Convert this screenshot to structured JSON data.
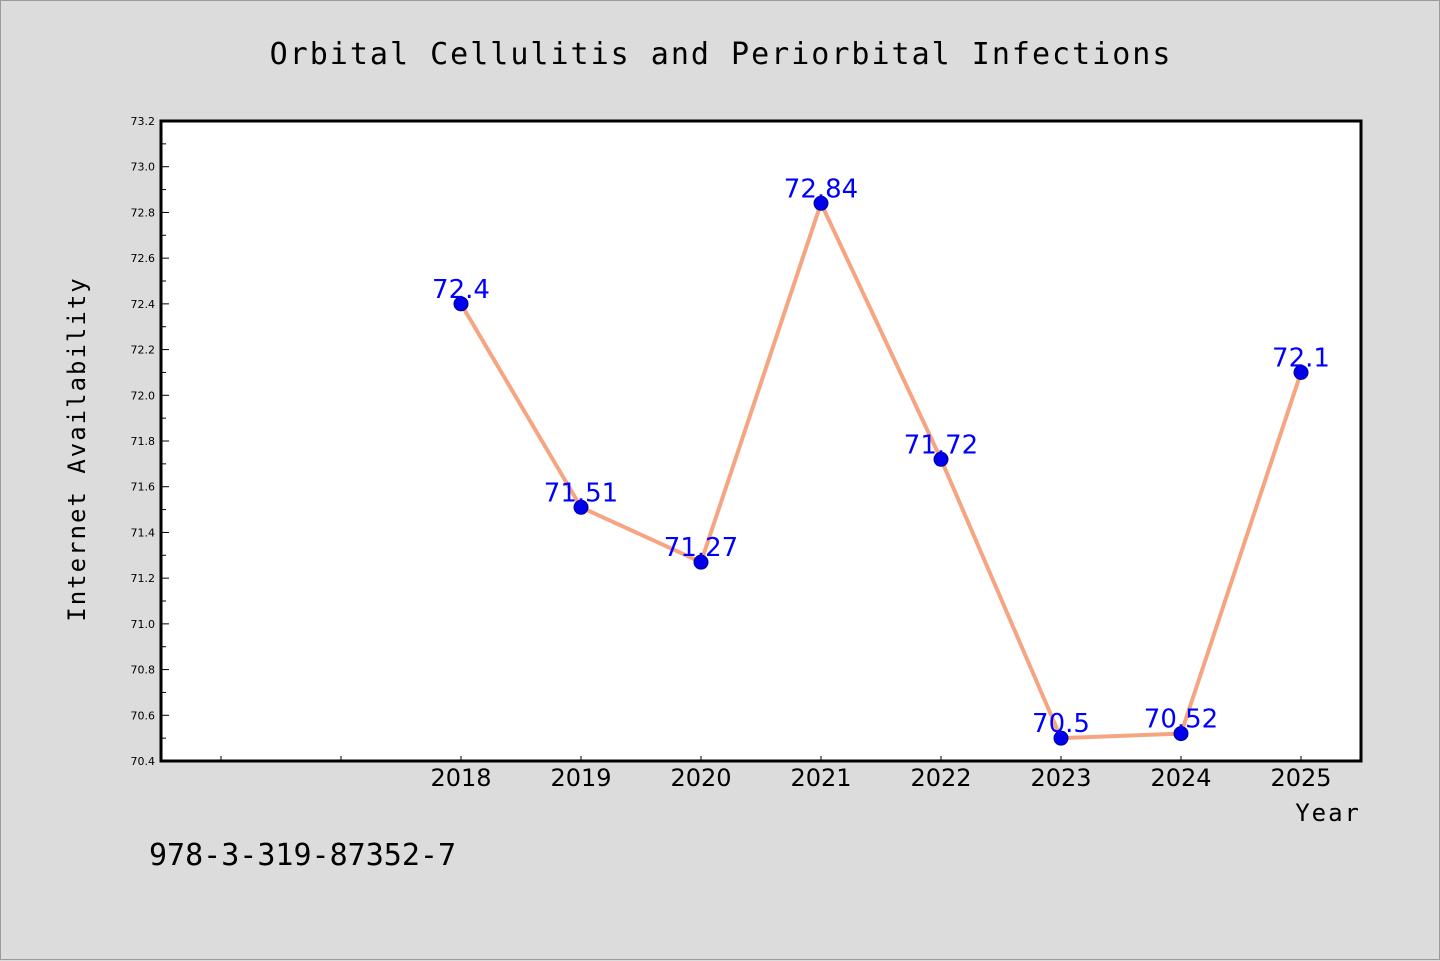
{
  "chart_data": {
    "type": "line",
    "title": "Orbital Cellulitis and Periorbital Infections",
    "xlabel": "Year",
    "ylabel": "Internet Availability",
    "x": [
      "2018",
      "2019",
      "2020",
      "2021",
      "2022",
      "2023",
      "2024",
      "2025"
    ],
    "series": [
      {
        "values": [
          72.4,
          71.51,
          71.27,
          72.84,
          71.72,
          70.5,
          70.52,
          72.1
        ],
        "labels": [
          "72.4",
          "71.51",
          "71.27",
          "72.84",
          "71.72",
          "70.5",
          "70.52",
          "72.1"
        ]
      }
    ],
    "ylim": [
      70.4,
      73.2
    ],
    "yticks": [
      "70.4",
      "70.6",
      "70.8",
      "71.0",
      "71.2",
      "71.4",
      "71.6",
      "71.8",
      "72.0",
      "72.2",
      "72.4",
      "72.6",
      "72.8",
      "73.0",
      "73.2"
    ],
    "grid": false,
    "line_color": "#f5a582",
    "marker_color": "#0000ee",
    "label_color": "#0000ff"
  },
  "footer": {
    "isbn": "978-3-319-87352-7"
  }
}
